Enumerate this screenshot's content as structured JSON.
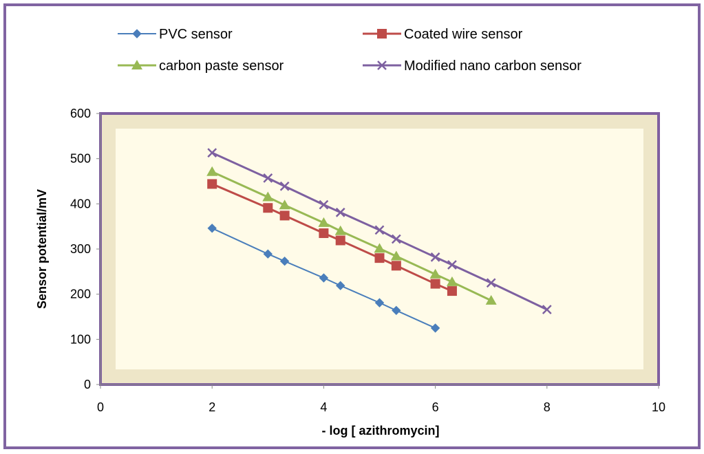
{
  "colors": {
    "outer_border": "#8064a2",
    "outer_bg": "#ffffff",
    "plot_border": "#7f5fa0",
    "plot_fill": "#fffbe8",
    "plot_bevel": "#eee6c8"
  },
  "chart_data": {
    "type": "line",
    "title": "",
    "xlabel": "- log [ azithromycin]",
    "ylabel": "Sensor potential/mV",
    "xlim": [
      0,
      10
    ],
    "ylim": [
      0,
      600
    ],
    "xticks": [
      0,
      2,
      4,
      6,
      8,
      10
    ],
    "yticks": [
      0,
      100,
      200,
      300,
      400,
      500,
      600
    ],
    "grid": false,
    "legend_position": "top",
    "series": [
      {
        "name": "PVC sensor",
        "color": "#4a7ebb",
        "marker": "diamond",
        "x": [
          2,
          3,
          3.3,
          4,
          4.3,
          5,
          5.3,
          6
        ],
        "y": [
          346,
          289,
          273,
          236,
          219,
          181,
          164,
          125
        ]
      },
      {
        "name": "Coated wire sensor",
        "color": "#be4b48",
        "marker": "square",
        "x": [
          2,
          3,
          3.3,
          4,
          4.3,
          5,
          5.3,
          6,
          6.3
        ],
        "y": [
          444,
          391,
          374,
          335,
          319,
          280,
          263,
          223,
          207
        ]
      },
      {
        "name": "carbon paste sensor",
        "color": "#98b954",
        "marker": "triangle",
        "x": [
          2,
          3,
          3.3,
          4,
          4.3,
          5,
          5.3,
          6,
          6.3,
          7
        ],
        "y": [
          471,
          415,
          397,
          358,
          340,
          301,
          284,
          244,
          227,
          186
        ]
      },
      {
        "name": "Modified nano carbon sensor",
        "color": "#7d60a0",
        "marker": "x",
        "x": [
          2,
          3,
          3.3,
          4,
          4.3,
          5,
          5.3,
          6,
          6.3,
          7,
          8
        ],
        "y": [
          513,
          457,
          439,
          398,
          381,
          342,
          322,
          282,
          265,
          225,
          166
        ]
      }
    ]
  }
}
